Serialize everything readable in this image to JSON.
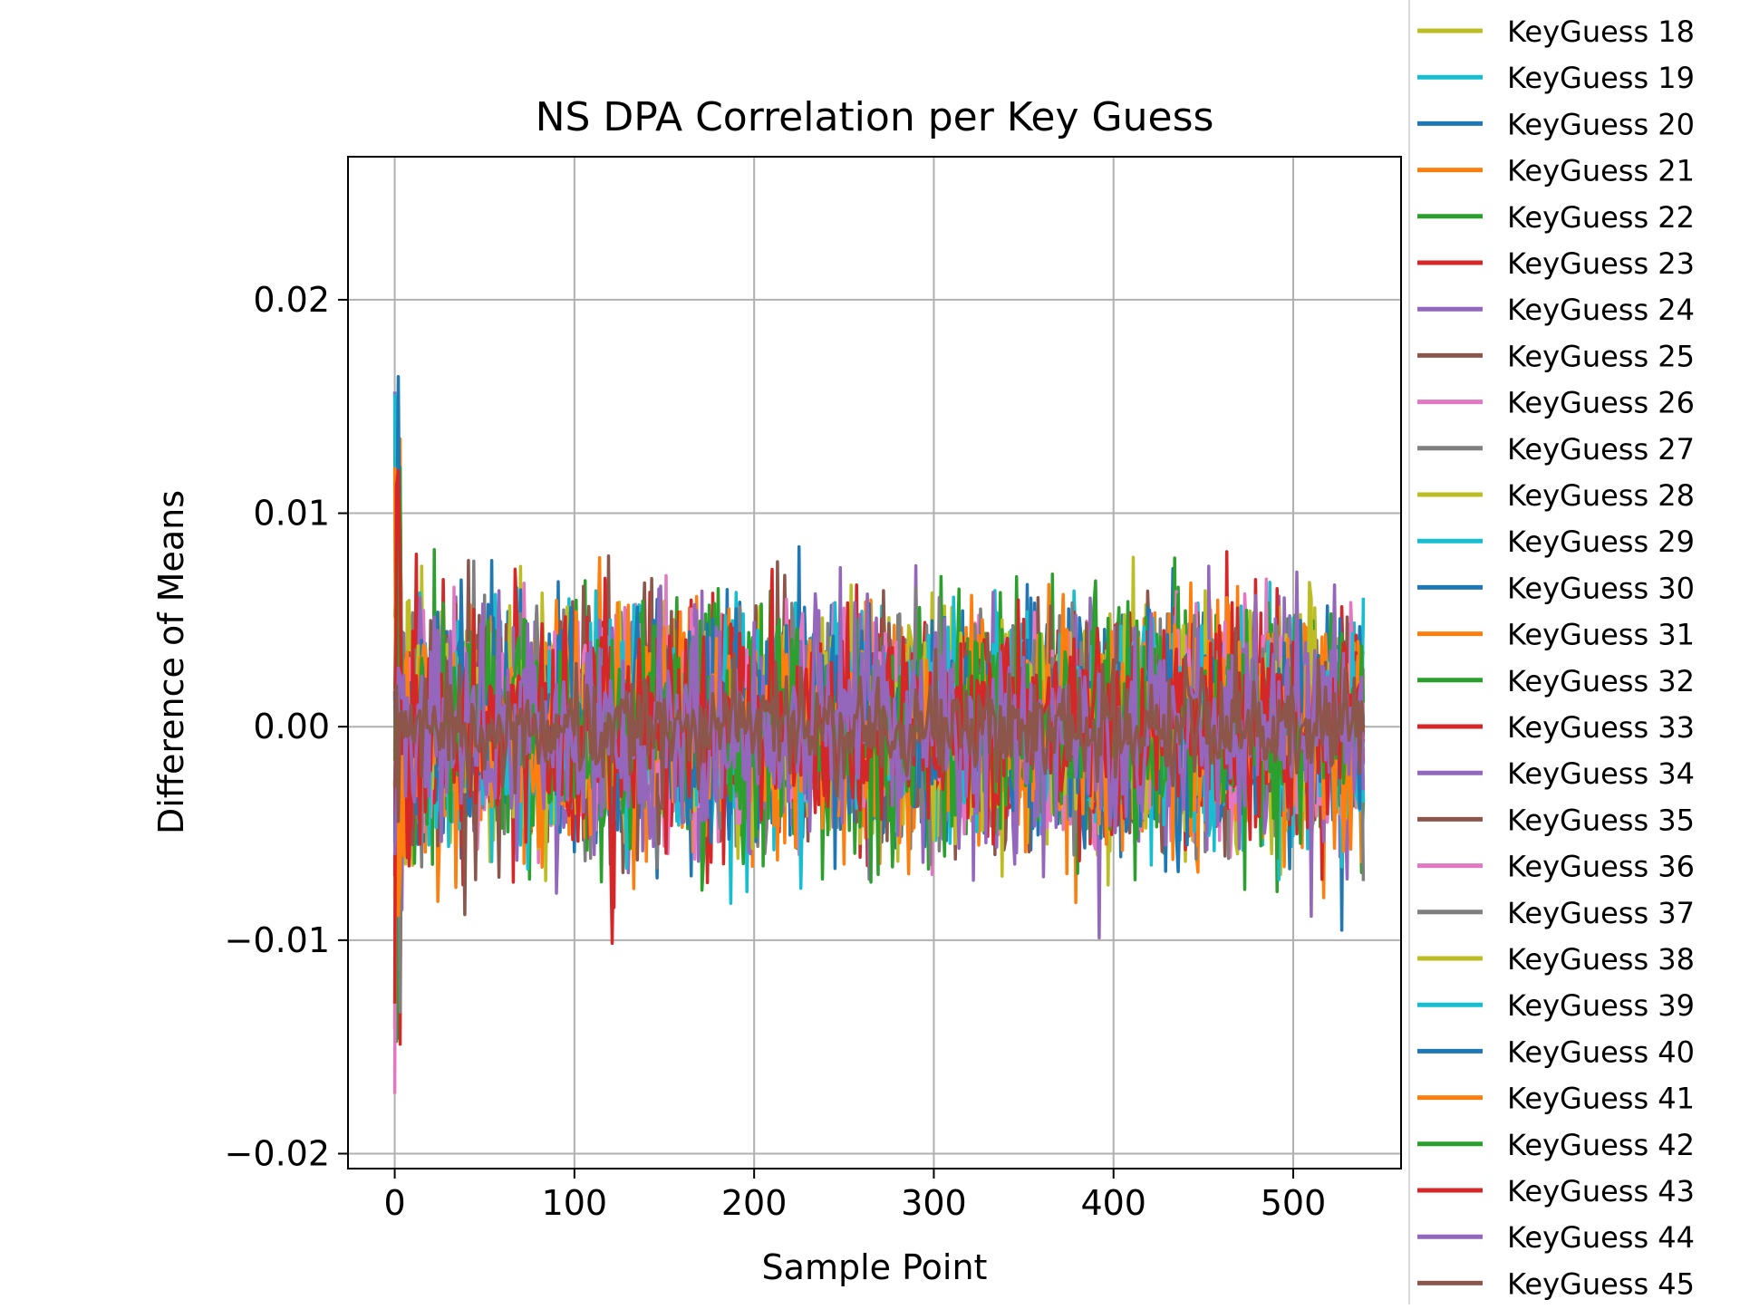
{
  "chart_data": {
    "type": "line",
    "title": "NS DPA Correlation per Key Guess",
    "xlabel": "Sample Point",
    "ylabel": "Difference of Means",
    "xlim": [
      -26,
      560
    ],
    "ylim": [
      -0.0207,
      0.0267
    ],
    "x_range": [
      0,
      539
    ],
    "x_ticks": [
      0,
      100,
      200,
      300,
      400,
      500
    ],
    "x_tick_labels": [
      "0",
      "100",
      "200",
      "300",
      "400",
      "500"
    ],
    "y_ticks": [
      -0.02,
      -0.01,
      0.0,
      0.01,
      0.02
    ],
    "y_tick_labels": [
      "−0.02",
      "−0.01",
      "0.00",
      "0.01",
      "0.02"
    ],
    "grid": true,
    "legend_position": "outside-right",
    "palette": [
      "#1f77b4",
      "#ff7f0e",
      "#2ca02c",
      "#d62728",
      "#9467bd",
      "#8c564b",
      "#e377c2",
      "#7f7f7f",
      "#bcbd22",
      "#17becf"
    ],
    "series": [
      {
        "name": "KeyGuess 18",
        "color": "#bcbd22",
        "amplitude": 0.0045,
        "seed": 18
      },
      {
        "name": "KeyGuess 19",
        "color": "#17becf",
        "amplitude": 0.0045,
        "seed": 19
      },
      {
        "name": "KeyGuess 20",
        "color": "#1f77b4",
        "amplitude": 0.0045,
        "seed": 20
      },
      {
        "name": "KeyGuess 21",
        "color": "#ff7f0e",
        "amplitude": 0.0045,
        "seed": 21
      },
      {
        "name": "KeyGuess 22",
        "color": "#2ca02c",
        "amplitude": 0.0045,
        "seed": 22
      },
      {
        "name": "KeyGuess 23",
        "color": "#d62728",
        "amplitude": 0.0045,
        "seed": 23
      },
      {
        "name": "KeyGuess 24",
        "color": "#9467bd",
        "amplitude": 0.0045,
        "seed": 24
      },
      {
        "name": "KeyGuess 25",
        "color": "#8c564b",
        "amplitude": 0.0045,
        "seed": 25
      },
      {
        "name": "KeyGuess 26",
        "color": "#e377c2",
        "amplitude": 0.0045,
        "seed": 26
      },
      {
        "name": "KeyGuess 27",
        "color": "#7f7f7f",
        "amplitude": 0.0045,
        "seed": 27
      },
      {
        "name": "KeyGuess 28",
        "color": "#bcbd22",
        "amplitude": 0.0045,
        "seed": 28
      },
      {
        "name": "KeyGuess 29",
        "color": "#17becf",
        "amplitude": 0.0045,
        "seed": 29
      },
      {
        "name": "KeyGuess 30",
        "color": "#1f77b4",
        "amplitude": 0.0045,
        "seed": 30
      },
      {
        "name": "KeyGuess 31",
        "color": "#ff7f0e",
        "amplitude": 0.0045,
        "seed": 31
      },
      {
        "name": "KeyGuess 32",
        "color": "#2ca02c",
        "amplitude": 0.0045,
        "seed": 32
      },
      {
        "name": "KeyGuess 33",
        "color": "#d62728",
        "amplitude": 0.0045,
        "seed": 33
      },
      {
        "name": "KeyGuess 34",
        "color": "#9467bd",
        "amplitude": 0.0045,
        "seed": 34
      },
      {
        "name": "KeyGuess 35",
        "color": "#8c564b",
        "amplitude": 0.0045,
        "seed": 35
      },
      {
        "name": "KeyGuess 36",
        "color": "#e377c2",
        "amplitude": 0.0045,
        "seed": 36
      },
      {
        "name": "KeyGuess 37",
        "color": "#7f7f7f",
        "amplitude": 0.0045,
        "seed": 37
      },
      {
        "name": "KeyGuess 38",
        "color": "#bcbd22",
        "amplitude": 0.0045,
        "seed": 38
      },
      {
        "name": "KeyGuess 39",
        "color": "#17becf",
        "amplitude": 0.0045,
        "seed": 39
      },
      {
        "name": "KeyGuess 40",
        "color": "#1f77b4",
        "amplitude": 0.0045,
        "seed": 40
      },
      {
        "name": "KeyGuess 41",
        "color": "#ff7f0e",
        "amplitude": 0.0045,
        "seed": 41
      },
      {
        "name": "KeyGuess 42",
        "color": "#2ca02c",
        "amplitude": 0.0045,
        "seed": 42
      },
      {
        "name": "KeyGuess 43",
        "color": "#d62728",
        "amplitude": 0.0045,
        "seed": 43
      },
      {
        "name": "KeyGuess 44",
        "color": "#9467bd",
        "amplitude": 0.0045,
        "seed": 44
      },
      {
        "name": "KeyGuess 45",
        "color": "#8c564b",
        "amplitude": 0.0022,
        "seed": 45
      }
    ]
  }
}
